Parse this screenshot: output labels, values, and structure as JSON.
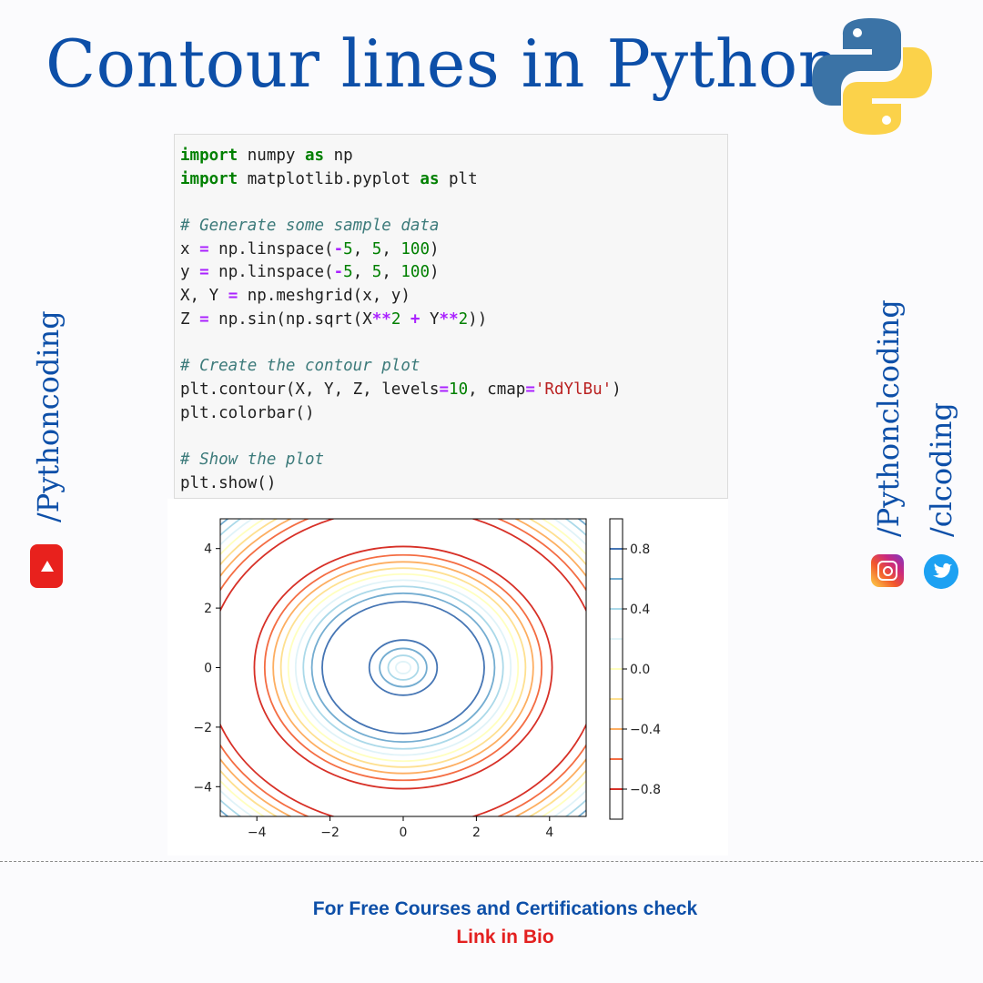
{
  "title": "Contour lines in Python",
  "code": {
    "lines": [
      [
        {
          "t": "import",
          "c": "kw"
        },
        {
          "t": " numpy "
        },
        {
          "t": "as",
          "c": "kw"
        },
        {
          "t": " np"
        }
      ],
      [
        {
          "t": "import",
          "c": "kw"
        },
        {
          "t": " matplotlib.pyplot "
        },
        {
          "t": "as",
          "c": "kw"
        },
        {
          "t": " plt"
        }
      ],
      [],
      [
        {
          "t": "# Generate some sample data",
          "c": "cm"
        }
      ],
      [
        {
          "t": "x "
        },
        {
          "t": "=",
          "c": "op"
        },
        {
          "t": " np.linspace("
        },
        {
          "t": "-",
          "c": "op"
        },
        {
          "t": "5",
          "c": "num"
        },
        {
          "t": ", "
        },
        {
          "t": "5",
          "c": "num"
        },
        {
          "t": ", "
        },
        {
          "t": "100",
          "c": "num"
        },
        {
          "t": ")"
        }
      ],
      [
        {
          "t": "y "
        },
        {
          "t": "=",
          "c": "op"
        },
        {
          "t": " np.linspace("
        },
        {
          "t": "-",
          "c": "op"
        },
        {
          "t": "5",
          "c": "num"
        },
        {
          "t": ", "
        },
        {
          "t": "5",
          "c": "num"
        },
        {
          "t": ", "
        },
        {
          "t": "100",
          "c": "num"
        },
        {
          "t": ")"
        }
      ],
      [
        {
          "t": "X, Y "
        },
        {
          "t": "=",
          "c": "op"
        },
        {
          "t": " np.meshgrid(x, y)"
        }
      ],
      [
        {
          "t": "Z "
        },
        {
          "t": "=",
          "c": "op"
        },
        {
          "t": " np.sin(np.sqrt(X"
        },
        {
          "t": "**",
          "c": "op"
        },
        {
          "t": "2",
          "c": "num"
        },
        {
          "t": " "
        },
        {
          "t": "+",
          "c": "op"
        },
        {
          "t": " Y"
        },
        {
          "t": "**",
          "c": "op"
        },
        {
          "t": "2",
          "c": "num"
        },
        {
          "t": "))"
        }
      ],
      [],
      [
        {
          "t": "# Create the contour plot",
          "c": "cm"
        }
      ],
      [
        {
          "t": "plt.contour(X, Y, Z, levels"
        },
        {
          "t": "=",
          "c": "op"
        },
        {
          "t": "10",
          "c": "num"
        },
        {
          "t": ", cmap"
        },
        {
          "t": "=",
          "c": "op"
        },
        {
          "t": "'RdYlBu'",
          "c": "str"
        },
        {
          "t": ")"
        }
      ],
      [
        {
          "t": "plt.colorbar()"
        }
      ],
      [],
      [
        {
          "t": "# Show the plot",
          "c": "cm"
        }
      ],
      [
        {
          "t": "plt.show()"
        }
      ]
    ]
  },
  "chart_data": {
    "type": "contour",
    "function": "Z = sin(sqrt(X**2 + Y**2))",
    "xlim": [
      -5,
      5
    ],
    "ylim": [
      -5,
      5
    ],
    "x_ticks": [
      "−4",
      "−2",
      "0",
      "2",
      "4"
    ],
    "y_ticks": [
      "−4",
      "−2",
      "0",
      "2",
      "4"
    ],
    "x_tick_values": [
      -4,
      -2,
      0,
      2,
      4
    ],
    "y_tick_values": [
      -4,
      -2,
      0,
      2,
      4
    ],
    "levels": [
      -0.8,
      -0.6,
      -0.4,
      -0.2,
      0.0,
      0.2,
      0.4,
      0.6,
      0.8
    ],
    "level_colors": [
      "#d73027",
      "#f46d43",
      "#fdae61",
      "#fee090",
      "#ffffbf",
      "#e0f3f8",
      "#abd9e9",
      "#74add1",
      "#4575b4"
    ],
    "colorbar_ticks": [
      "0.8",
      "0.4",
      "0.0",
      "−0.4",
      "−0.8"
    ],
    "colorbar_tick_values": [
      0.8,
      0.4,
      0.0,
      -0.4,
      -0.8
    ],
    "colorbar_range": [
      -1,
      1
    ],
    "colormap": "RdYlBu"
  },
  "social": {
    "youtube_handle": "/Pythoncoding",
    "instagram_handle": "/Pythonclcoding",
    "twitter_handle": "/clcoding"
  },
  "footer": {
    "line1": "For Free Courses and Certifications check",
    "line2": "Link in Bio"
  },
  "colors": {
    "title": "#0d4fa8",
    "footer_link": "#e32020",
    "youtube": "#e8211d"
  }
}
